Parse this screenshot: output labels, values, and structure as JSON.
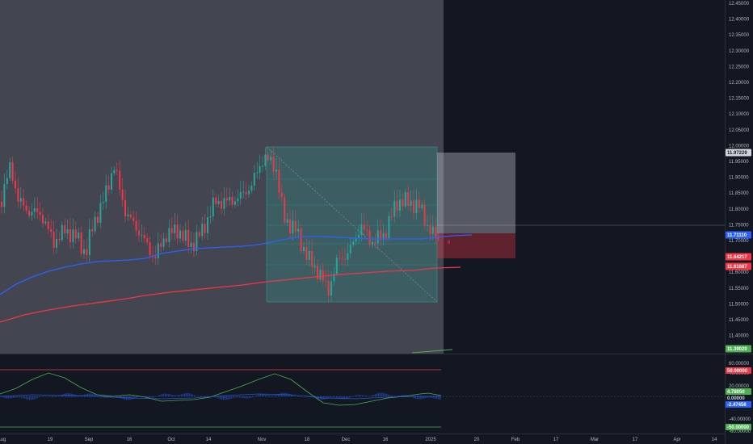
{
  "price_axis": {
    "ticks": [
      "12.45000",
      "12.40000",
      "12.35000",
      "12.30000",
      "12.25000",
      "12.20000",
      "12.15000",
      "12.10000",
      "12.05000",
      "12.00000",
      "11.95000",
      "11.90000",
      "11.85000",
      "11.80000",
      "11.75000",
      "11.70000",
      "11.65000",
      "11.60000",
      "11.55000",
      "11.50000",
      "11.45000",
      "11.40000"
    ],
    "tags": [
      {
        "text": "11.97229",
        "bg": "#d1d4dc",
        "fg": "#131722"
      },
      {
        "text": "11.71110",
        "bg": "#2962ff",
        "fg": "#ffffff"
      },
      {
        "text": "11.64217",
        "bg": "#f23645",
        "fg": "#ffffff"
      },
      {
        "text": "11.61687",
        "bg": "#f23645",
        "fg": "#ffffff"
      },
      {
        "text": "11.39020",
        "bg": "#4caf50",
        "fg": "#ffffff"
      }
    ]
  },
  "oscillator_axis": {
    "ticks": [
      "60.00000",
      "40.00000",
      "20.00000",
      "0.00000",
      "-40.00000",
      "-60.00000"
    ],
    "tags": [
      {
        "text": "50.00000",
        "bg": "#f23645",
        "fg": "#ffffff"
      },
      {
        "text": "4.78050",
        "bg": "#4caf50",
        "fg": "#ffffff"
      },
      {
        "text": "0.00000",
        "bg": "#131722",
        "fg": "#d1d4dc"
      },
      {
        "text": "-2.47456",
        "bg": "#2962ff",
        "fg": "#ffffff"
      },
      {
        "text": "-50.00000",
        "bg": "#4caf50",
        "fg": "#ffffff"
      }
    ]
  },
  "time_axis": {
    "labels": [
      "Aug",
      "19",
      "Sep",
      "16",
      "Oct",
      "14",
      "Nov",
      "18",
      "Dec",
      "16",
      "2025",
      "20",
      "Feb",
      "17",
      "Mar",
      "17",
      "Apr",
      "14"
    ]
  },
  "markers": {
    "position_number": "6"
  },
  "colors": {
    "bull": "#26a69a",
    "bear": "#f23645",
    "ma_fast": "#2962ff",
    "ma_slow": "#f23645",
    "selection": "#434651"
  }
}
